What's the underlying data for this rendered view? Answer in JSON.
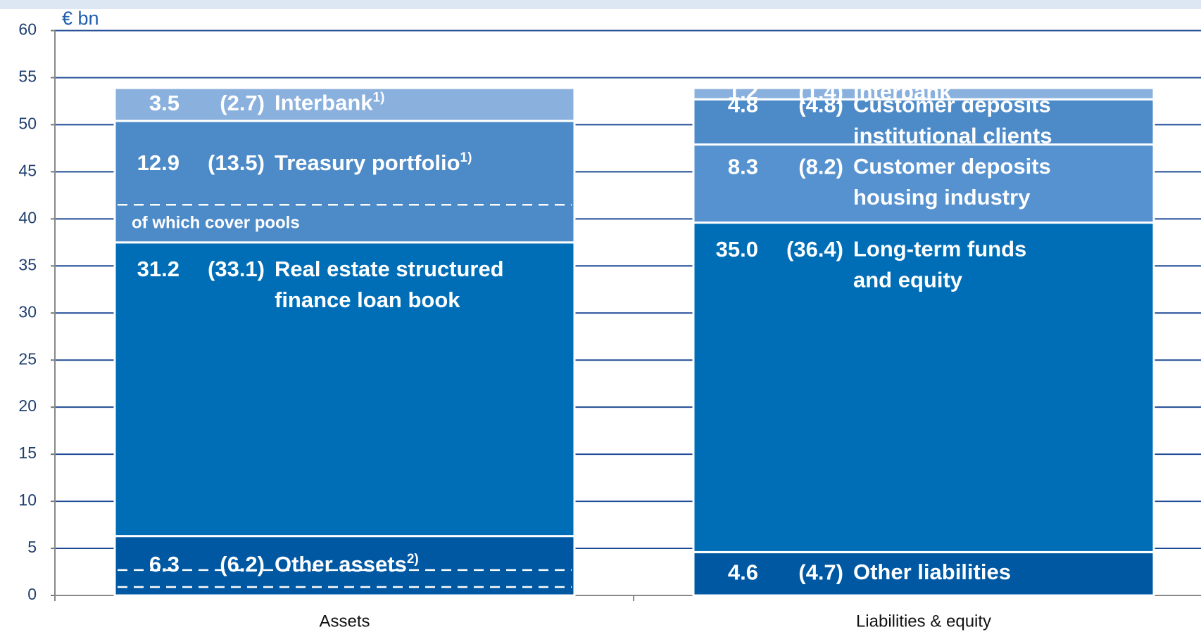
{
  "chart_data": {
    "type": "stacked_bar",
    "y_unit_label": "€ bn",
    "ylim": [
      0,
      60
    ],
    "yticks": [
      0,
      5,
      10,
      15,
      20,
      25,
      30,
      35,
      40,
      45,
      50,
      55,
      60
    ],
    "grid": true,
    "categories": [
      "Assets",
      "Liabilities & equity"
    ],
    "stacks": [
      [
        {
          "name": [
            "Other assets"
          ],
          "footnote": "2)",
          "value": 6.3,
          "value_label": "6.3",
          "prior_label": "(6.2)",
          "color": "#0058a3",
          "sub_levels": [
            2.7,
            0.9
          ]
        },
        {
          "name": [
            "Real estate structured",
            "finance loan book"
          ],
          "value": 31.2,
          "value_label": "31.2",
          "prior_label": "(33.1)",
          "color": "#006eb6"
        },
        {
          "name": [
            "Treasury portfolio"
          ],
          "footnote": "1)",
          "value": 12.9,
          "value_label": "12.9",
          "prior_label": "(13.5)",
          "color": "#4d8ac8",
          "sub_levels": [
            41.5
          ],
          "sub_label": "of which cover pools"
        },
        {
          "name": [
            "Interbank"
          ],
          "footnote": "1)",
          "value": 3.5,
          "value_label": "3.5",
          "prior_label": "(2.7)",
          "color": "#8ab1de"
        }
      ],
      [
        {
          "name": [
            "Other liabilities"
          ],
          "value": 4.6,
          "value_label": "4.6",
          "prior_label": "(4.7)",
          "color": "#0058a3"
        },
        {
          "name": [
            "Long-term funds",
            "and equity"
          ],
          "value": 35.0,
          "value_label": "35.0",
          "prior_label": "(36.4)",
          "color": "#006eb6"
        },
        {
          "name": [
            "Customer deposits",
            "housing industry"
          ],
          "value": 8.3,
          "value_label": "8.3",
          "prior_label": "(8.2)",
          "color": "#5592cf"
        },
        {
          "name": [
            "Customer deposits",
            "institutional clients"
          ],
          "value": 4.8,
          "value_label": "4.8",
          "prior_label": "(4.8)",
          "color": "#4d8ac8"
        },
        {
          "name": [
            "Interbank"
          ],
          "value": 1.2,
          "value_label": "1.2",
          "prior_label": "(1.4)",
          "color": "#8ab1de",
          "label_color": "#8ab1de"
        }
      ]
    ]
  }
}
